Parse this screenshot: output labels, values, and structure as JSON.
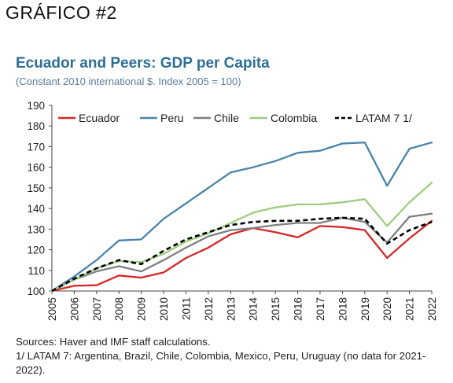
{
  "heading": "GRÁFICO #2",
  "chart_data": {
    "type": "line",
    "title": "Ecuador and Peers: GDP per Capita",
    "subtitle": "(Constant 2010 international $. Index 2005 = 100)",
    "xlabel": "",
    "ylabel": "",
    "categories": [
      "2005",
      "2006",
      "2007",
      "2008",
      "2009",
      "2010",
      "2011",
      "2012",
      "2013",
      "2014",
      "2015",
      "2016",
      "2017",
      "2018",
      "2019",
      "2020",
      "2021",
      "2022"
    ],
    "ylim": [
      100,
      190
    ],
    "yticks": [
      100,
      110,
      120,
      130,
      140,
      150,
      160,
      170,
      180,
      190
    ],
    "grid": false,
    "legend_placement": "top",
    "series": [
      {
        "name": "Ecuador",
        "color": "#d62728",
        "dash": "solid",
        "values": [
          100,
          102.5,
          102.8,
          107.5,
          106.5,
          109,
          116,
          121,
          127.5,
          130.5,
          128.5,
          126,
          131.5,
          131,
          129.5,
          116,
          125.5,
          134
        ]
      },
      {
        "name": "Peru",
        "color": "#4a83aa",
        "dash": "solid",
        "values": [
          100,
          107,
          115,
          124.5,
          125,
          135,
          142.5,
          150,
          157.5,
          160,
          163,
          167,
          168,
          171.5,
          172,
          151,
          169,
          172
        ]
      },
      {
        "name": "Chile",
        "color": "#7f7f7f",
        "dash": "solid",
        "values": [
          100,
          105.5,
          109.5,
          112,
          109.5,
          115,
          121,
          126.5,
          129.5,
          130.5,
          132,
          133,
          133,
          135.5,
          133.5,
          123.5,
          136,
          137.5
        ]
      },
      {
        "name": "Colombia",
        "color": "#9dcc7f",
        "dash": "solid",
        "values": [
          100,
          105.5,
          111,
          114.5,
          114,
          118,
          124,
          128,
          133,
          138,
          140.5,
          142,
          142,
          143,
          144.5,
          131.5,
          143,
          152.5
        ]
      },
      {
        "name": "LATAM 7 1/",
        "color": "#000000",
        "dash": "dashed",
        "values": [
          100,
          106,
          111,
          115,
          113,
          119.5,
          125,
          128.5,
          132,
          133.5,
          134,
          134,
          135,
          135.5,
          135,
          123,
          129.5,
          133.5
        ]
      }
    ]
  },
  "notes": {
    "sources": "Sources: Haver and IMF staff calculations.",
    "footnote": "1/ LATAM 7: Argentina, Brazil, Chile, Colombia, Mexico, Peru, Uruguay (no data for 2021-2022)."
  }
}
